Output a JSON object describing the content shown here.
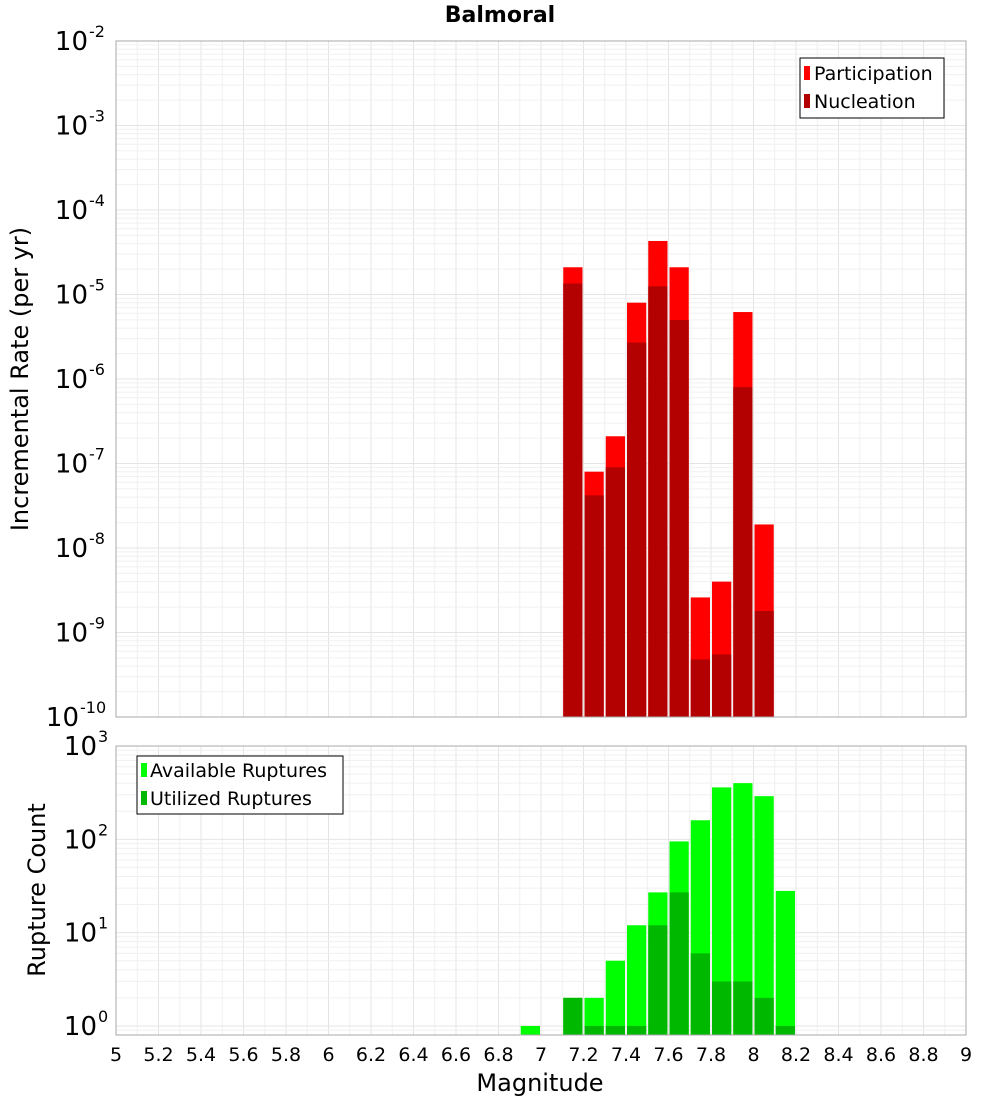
{
  "chart_data": [
    {
      "type": "bar",
      "title": "Balmoral",
      "xlabel": "",
      "ylabel": "Incremental Rate (per yr)",
      "yscale": "log",
      "ylim": [
        1e-10,
        0.01
      ],
      "xlim": [
        5,
        9
      ],
      "y_tick_exponents": [
        "-10",
        "-9",
        "-8",
        "-7",
        "-6",
        "-5",
        "-4",
        "-3",
        "-2"
      ],
      "y_tick_base": "10",
      "legend": {
        "placement": "top-right",
        "entries": [
          "Participation",
          "Nucleation"
        ]
      },
      "series": [
        {
          "name": "Participation",
          "color": "#ff0000",
          "x": [
            7.15,
            7.25,
            7.35,
            7.45,
            7.55,
            7.65,
            7.75,
            7.85,
            7.95,
            8.05
          ],
          "values": [
            2.1e-05,
            8e-08,
            2.1e-07,
            8e-06,
            4.3e-05,
            2.1e-05,
            2.6e-09,
            4e-09,
            6.2e-06,
            1.9e-08
          ]
        },
        {
          "name": "Nucleation",
          "color": "#b30000",
          "x": [
            7.15,
            7.25,
            7.35,
            7.45,
            7.55,
            7.65,
            7.75,
            7.85,
            7.95,
            8.05
          ],
          "values": [
            1.35e-05,
            4.2e-08,
            9e-08,
            2.7e-06,
            1.25e-05,
            5e-06,
            4.8e-10,
            5.5e-10,
            8e-07,
            1.8e-09
          ]
        }
      ]
    },
    {
      "type": "bar",
      "xlabel": "Magnitude",
      "ylabel": "Rupture Count",
      "yscale": "log",
      "ylim": [
        0.8,
        1000
      ],
      "xlim": [
        5,
        9
      ],
      "x_ticks": [
        "5",
        "5.2",
        "5.4",
        "5.6",
        "5.8",
        "6",
        "6.2",
        "6.4",
        "6.6",
        "6.8",
        "7",
        "7.2",
        "7.4",
        "7.6",
        "7.8",
        "8",
        "8.2",
        "8.4",
        "8.6",
        "8.8",
        "9"
      ],
      "y_tick_exponents": [
        "0",
        "1",
        "2",
        "3"
      ],
      "y_tick_base": "10",
      "legend": {
        "placement": "top-left",
        "entries": [
          "Available Ruptures",
          "Utilized Ruptures"
        ]
      },
      "series": [
        {
          "name": "Available Ruptures",
          "color": "#00ff00",
          "x": [
            6.95,
            7.15,
            7.25,
            7.35,
            7.45,
            7.55,
            7.65,
            7.75,
            7.85,
            7.95,
            8.05,
            8.15
          ],
          "values": [
            1,
            2,
            2,
            5,
            12,
            27,
            95,
            160,
            360,
            400,
            290,
            28
          ]
        },
        {
          "name": "Utilized Ruptures",
          "color": "#00b800",
          "x": [
            7.15,
            7.25,
            7.35,
            7.45,
            7.55,
            7.65,
            7.75,
            7.85,
            7.95,
            8.05,
            8.15
          ],
          "values": [
            2,
            1,
            1,
            1,
            12,
            27,
            6,
            3,
            3,
            2,
            1
          ]
        }
      ]
    }
  ]
}
